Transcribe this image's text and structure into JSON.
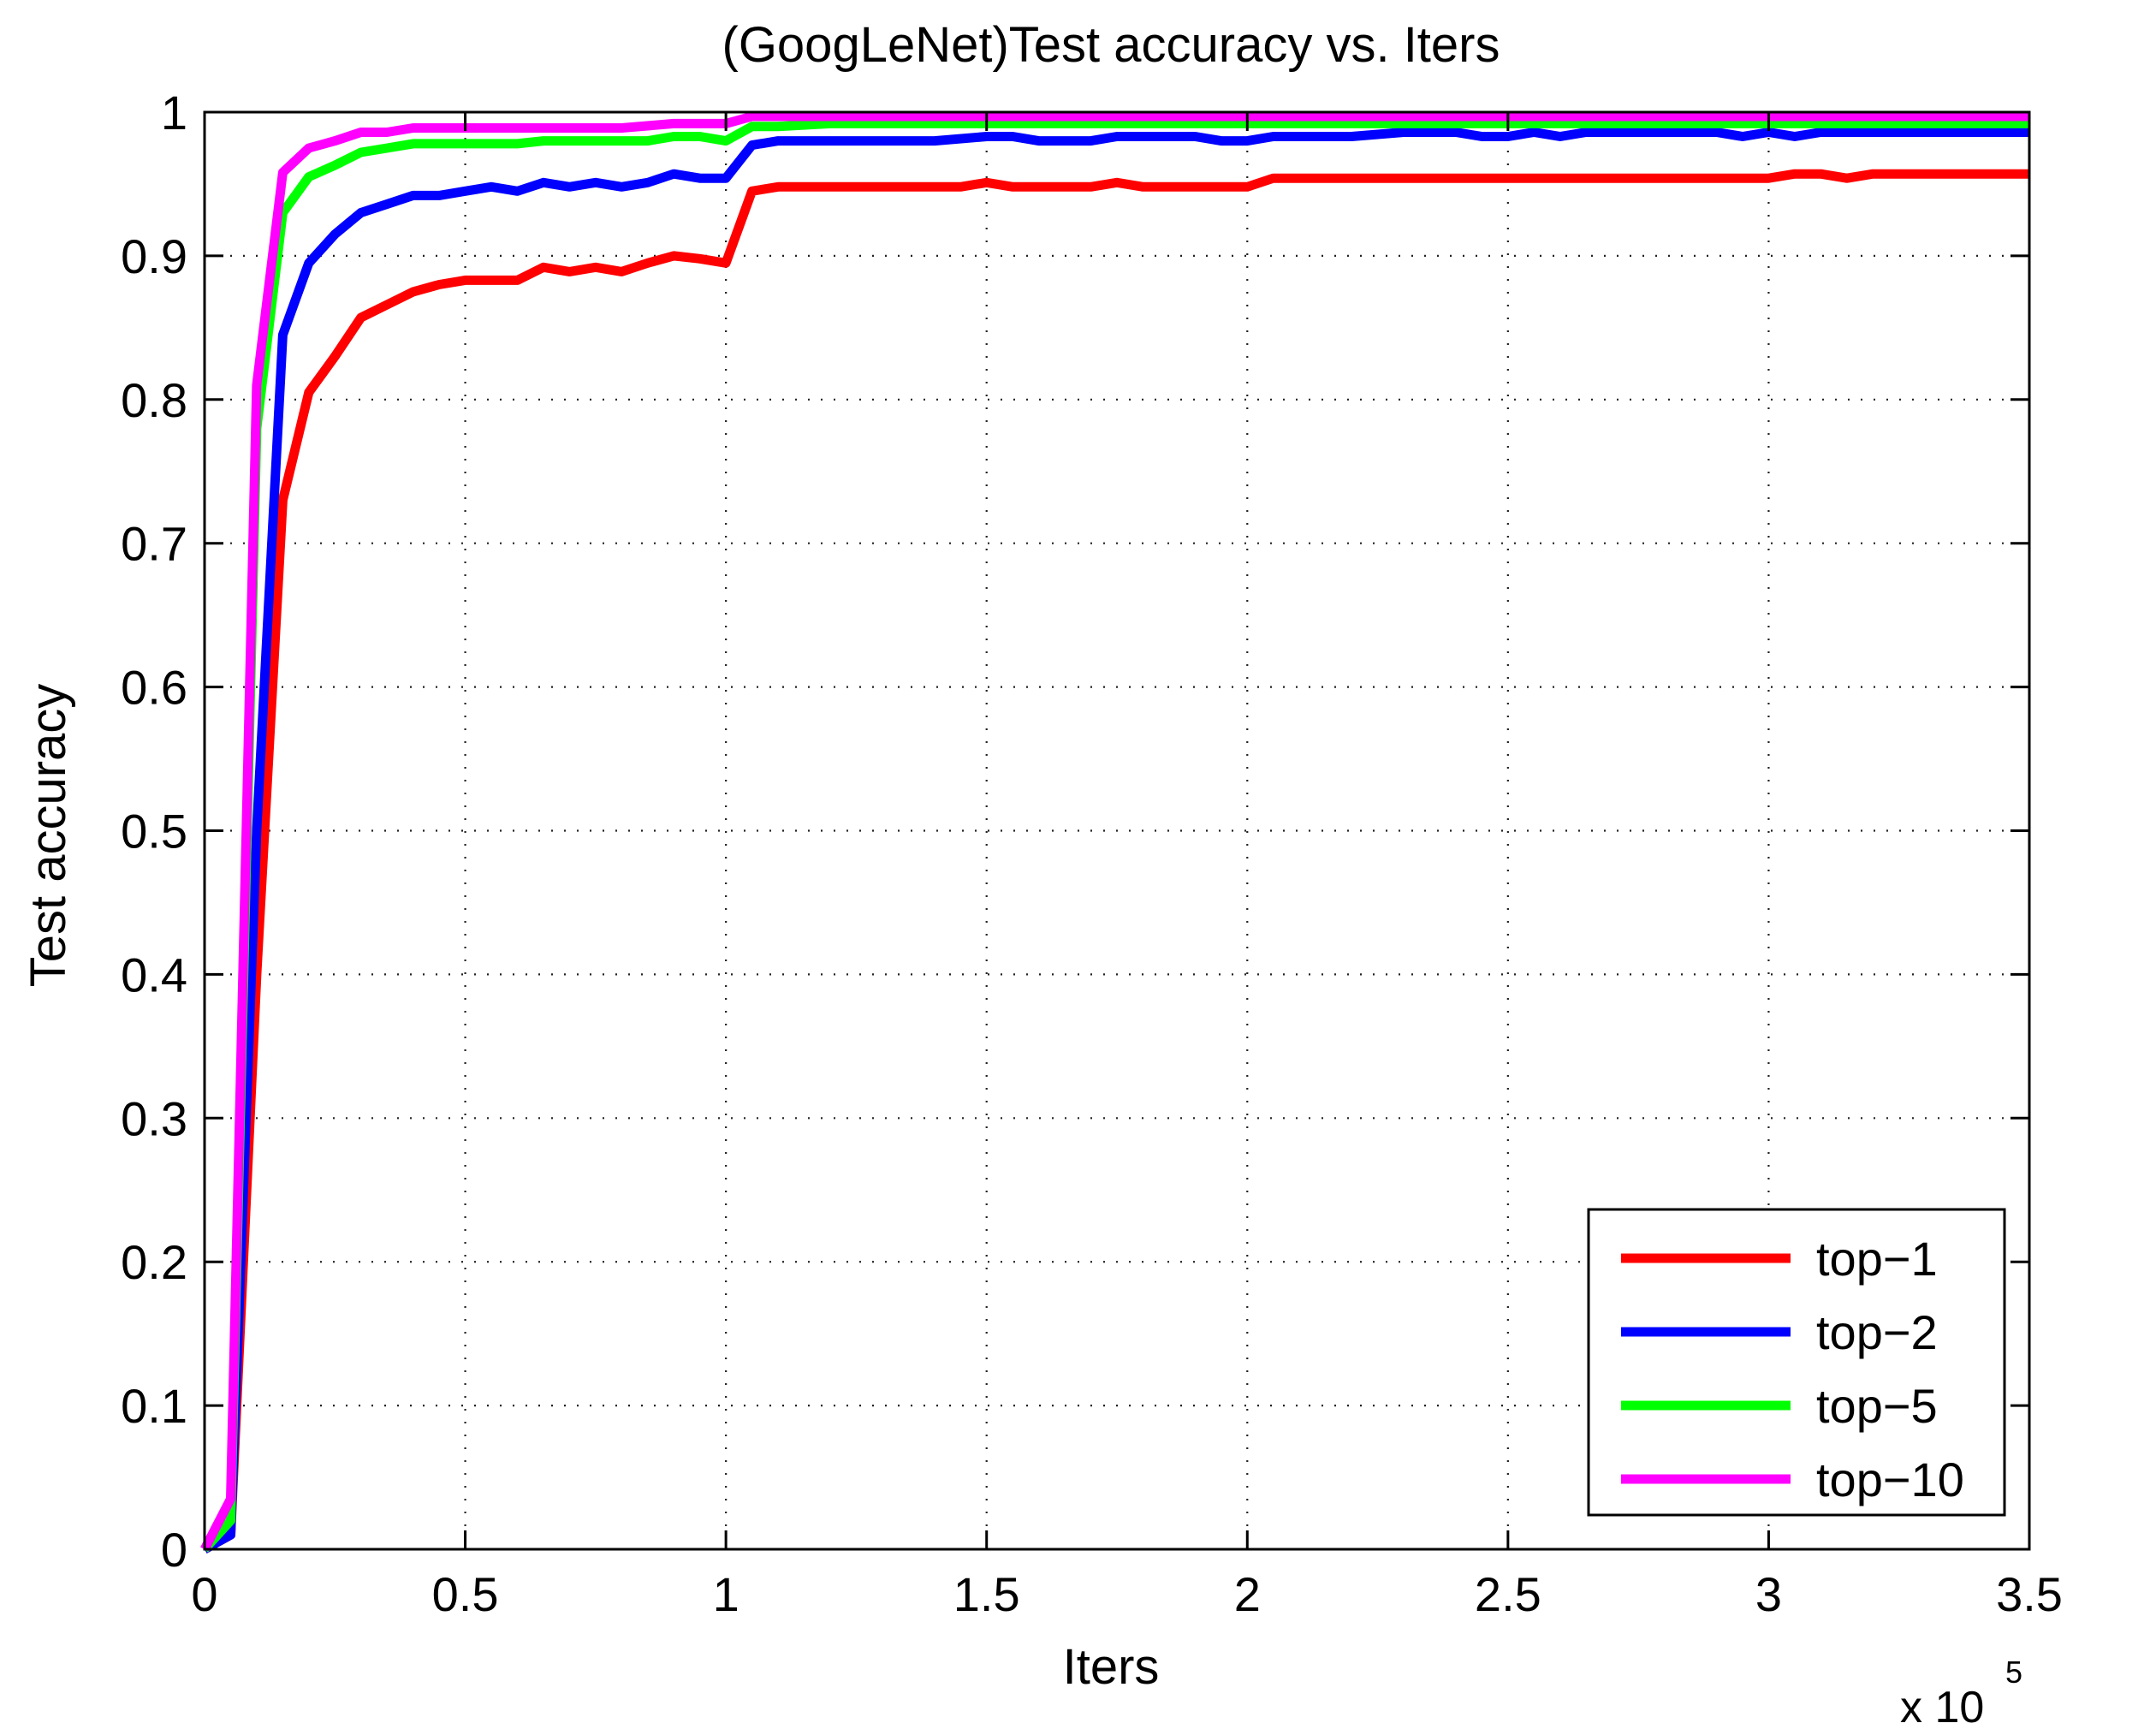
{
  "chart_data": {
    "type": "line",
    "title": "(GoogLeNet)Test accuracy vs. Iters",
    "xlabel": "Iters",
    "ylabel": "Test accuracy",
    "x_exponent": {
      "base": "x 10",
      "power": "5"
    },
    "xlim": [
      0,
      3.5
    ],
    "ylim": [
      0,
      1
    ],
    "grid": true,
    "legend_position": "bottom-right",
    "xticks": [
      0,
      0.5,
      1,
      1.5,
      2,
      2.5,
      3,
      3.5
    ],
    "xtick_labels": [
      "0",
      "0.5",
      "1",
      "1.5",
      "2",
      "2.5",
      "3",
      "3.5"
    ],
    "yticks": [
      0,
      0.1,
      0.2,
      0.3,
      0.4,
      0.5,
      0.6,
      0.7,
      0.8,
      0.9,
      1
    ],
    "ytick_labels": [
      "0",
      "0.1",
      "0.2",
      "0.3",
      "0.4",
      "0.5",
      "0.6",
      "0.7",
      "0.8",
      "0.9",
      "1"
    ],
    "series": [
      {
        "name": "top−1",
        "color": "#ff0000",
        "x": [
          0,
          0.05,
          0.1,
          0.15,
          0.2,
          0.25,
          0.3,
          0.35,
          0.4,
          0.45,
          0.5,
          0.55,
          0.6,
          0.65,
          0.7,
          0.75,
          0.8,
          0.85,
          0.9,
          0.95,
          1.0,
          1.05,
          1.1,
          1.15,
          1.2,
          1.25,
          1.3,
          1.35,
          1.4,
          1.45,
          1.5,
          1.55,
          1.6,
          1.65,
          1.7,
          1.75,
          1.8,
          1.85,
          1.9,
          1.95,
          2.0,
          2.05,
          2.1,
          2.2,
          2.3,
          2.4,
          2.5,
          2.6,
          2.7,
          2.8,
          2.9,
          3.0,
          3.05,
          3.1,
          3.15,
          3.2,
          3.3,
          3.4,
          3.5
        ],
        "values": [
          0.0,
          0.01,
          0.4,
          0.73,
          0.805,
          0.83,
          0.857,
          0.866,
          0.875,
          0.88,
          0.883,
          0.883,
          0.883,
          0.892,
          0.889,
          0.892,
          0.889,
          0.895,
          0.9,
          0.898,
          0.895,
          0.945,
          0.948,
          0.948,
          0.948,
          0.948,
          0.948,
          0.948,
          0.948,
          0.948,
          0.951,
          0.948,
          0.948,
          0.948,
          0.948,
          0.951,
          0.948,
          0.948,
          0.948,
          0.948,
          0.948,
          0.954,
          0.954,
          0.954,
          0.954,
          0.954,
          0.954,
          0.954,
          0.954,
          0.954,
          0.954,
          0.954,
          0.957,
          0.957,
          0.954,
          0.957,
          0.957,
          0.957,
          0.957
        ]
      },
      {
        "name": "top−2",
        "color": "#0000ff",
        "x": [
          0,
          0.05,
          0.1,
          0.15,
          0.2,
          0.25,
          0.3,
          0.35,
          0.4,
          0.45,
          0.5,
          0.55,
          0.6,
          0.65,
          0.7,
          0.75,
          0.8,
          0.85,
          0.9,
          0.95,
          1.0,
          1.05,
          1.1,
          1.2,
          1.3,
          1.4,
          1.5,
          1.55,
          1.6,
          1.7,
          1.75,
          1.8,
          1.9,
          1.95,
          2.0,
          2.05,
          2.1,
          2.2,
          2.3,
          2.4,
          2.45,
          2.5,
          2.55,
          2.6,
          2.65,
          2.7,
          2.8,
          2.9,
          2.95,
          3.0,
          3.05,
          3.1,
          3.2,
          3.3,
          3.4,
          3.5
        ],
        "values": [
          0.0,
          0.01,
          0.5,
          0.845,
          0.895,
          0.915,
          0.93,
          0.936,
          0.942,
          0.942,
          0.945,
          0.948,
          0.945,
          0.951,
          0.948,
          0.951,
          0.948,
          0.951,
          0.957,
          0.954,
          0.954,
          0.977,
          0.98,
          0.98,
          0.98,
          0.98,
          0.983,
          0.983,
          0.98,
          0.98,
          0.983,
          0.983,
          0.983,
          0.98,
          0.98,
          0.983,
          0.983,
          0.983,
          0.986,
          0.986,
          0.983,
          0.983,
          0.986,
          0.983,
          0.986,
          0.986,
          0.986,
          0.986,
          0.983,
          0.986,
          0.983,
          0.986,
          0.986,
          0.986,
          0.986,
          0.986
        ]
      },
      {
        "name": "top−5",
        "color": "#00ff00",
        "x": [
          0,
          0.05,
          0.1,
          0.15,
          0.2,
          0.25,
          0.3,
          0.35,
          0.4,
          0.45,
          0.5,
          0.55,
          0.6,
          0.65,
          0.7,
          0.75,
          0.8,
          0.85,
          0.9,
          0.95,
          1.0,
          1.05,
          1.1,
          1.2,
          1.5,
          2.0,
          2.5,
          3.0,
          3.5
        ],
        "values": [
          0.0,
          0.02,
          0.78,
          0.93,
          0.955,
          0.963,
          0.972,
          0.975,
          0.978,
          0.978,
          0.978,
          0.978,
          0.978,
          0.98,
          0.98,
          0.98,
          0.98,
          0.98,
          0.983,
          0.983,
          0.98,
          0.99,
          0.99,
          0.992,
          0.992,
          0.992,
          0.992,
          0.992,
          0.992
        ]
      },
      {
        "name": "top−10",
        "color": "#ff00ff",
        "x": [
          0,
          0.05,
          0.1,
          0.15,
          0.2,
          0.25,
          0.3,
          0.35,
          0.4,
          0.5,
          0.6,
          0.7,
          0.8,
          0.9,
          1.0,
          1.05,
          1.1,
          1.5,
          2.0,
          2.5,
          3.0,
          3.5
        ],
        "values": [
          0.0,
          0.035,
          0.81,
          0.958,
          0.975,
          0.98,
          0.986,
          0.986,
          0.989,
          0.989,
          0.989,
          0.989,
          0.989,
          0.992,
          0.992,
          0.997,
          0.997,
          0.997,
          0.997,
          0.997,
          0.997,
          0.997
        ]
      }
    ]
  }
}
